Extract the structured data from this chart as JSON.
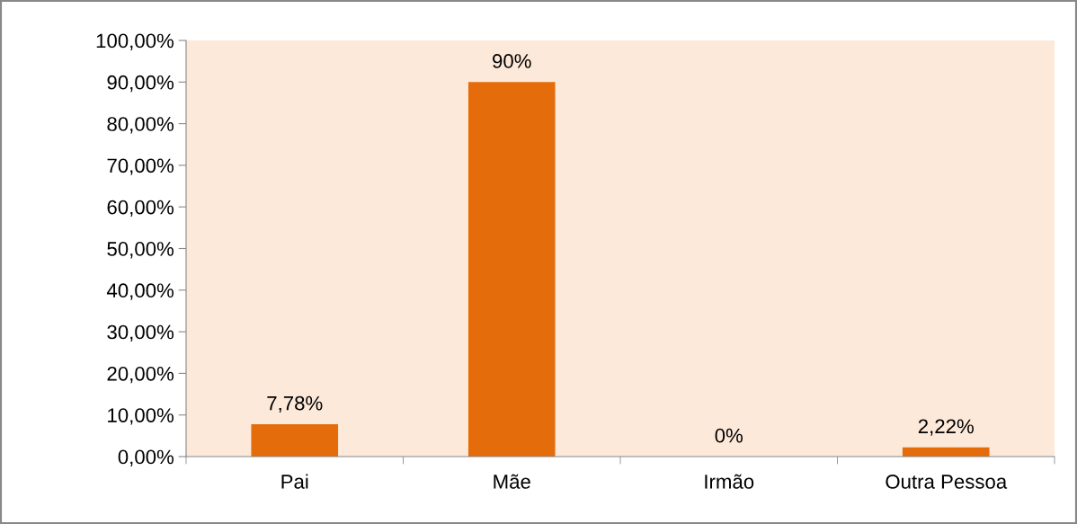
{
  "chart_data": {
    "type": "bar",
    "categories": [
      "Pai",
      "Mãe",
      "Irmão",
      "Outra Pessoa"
    ],
    "values": [
      7.78,
      90,
      0,
      2.22
    ],
    "value_labels": [
      "7,78%",
      "90%",
      "0%",
      "2,22%"
    ],
    "color": "#e46c0a",
    "ylim": [
      0,
      100
    ],
    "yticks": [
      {
        "value": 0,
        "label": "0,00%"
      },
      {
        "value": 10,
        "label": "10,00%"
      },
      {
        "value": 20,
        "label": "20,00%"
      },
      {
        "value": 30,
        "label": "30,00%"
      },
      {
        "value": 40,
        "label": "40,00%"
      },
      {
        "value": 50,
        "label": "50,00%"
      },
      {
        "value": 60,
        "label": "60,00%"
      },
      {
        "value": 70,
        "label": "70,00%"
      },
      {
        "value": 80,
        "label": "80,00%"
      },
      {
        "value": 90,
        "label": "90,00%"
      },
      {
        "value": 100,
        "label": "100,00%"
      }
    ],
    "grid": false,
    "legend": false
  }
}
